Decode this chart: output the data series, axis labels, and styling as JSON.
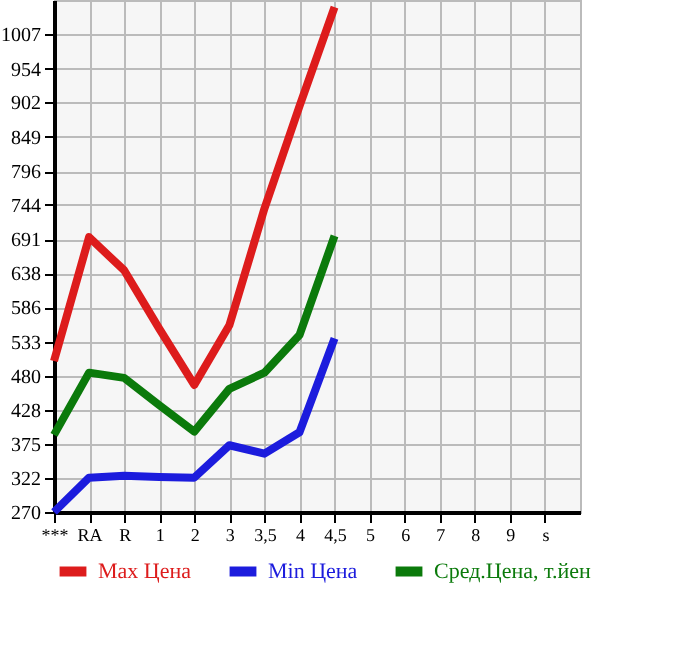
{
  "chart_data": {
    "type": "line",
    "categories": [
      "***",
      "RA",
      "R",
      "1",
      "2",
      "3",
      "3,5",
      "4",
      "4,5",
      "5",
      "6",
      "7",
      "8",
      "9",
      "s"
    ],
    "ylim": [
      270,
      1060
    ],
    "yticks": [
      270,
      322,
      375,
      428,
      480,
      533,
      586,
      638,
      691,
      744,
      796,
      849,
      902,
      954,
      1007
    ],
    "grid": true,
    "legend": "bottom",
    "line_style": "solid",
    "marker": "none",
    "series": [
      {
        "name": "Max Цена",
        "color": "#dd1c1c",
        "values": [
          503,
          694,
          643,
          553,
          466,
          558,
          738,
          896,
          1049,
          null,
          null,
          null,
          null,
          null,
          null
        ]
      },
      {
        "name": "Min Цена",
        "color": "#1c1cdd",
        "values": [
          270,
          323,
          326,
          324,
          323,
          373,
          360,
          393,
          538,
          null,
          null,
          null,
          null,
          null,
          null
        ]
      },
      {
        "name": "Сред.Цена, т.йен",
        "color": "#0b7a0b",
        "values": [
          389,
          485,
          477,
          435,
          394,
          460,
          485,
          543,
          696,
          null,
          null,
          null,
          null,
          null,
          null
        ]
      }
    ]
  }
}
